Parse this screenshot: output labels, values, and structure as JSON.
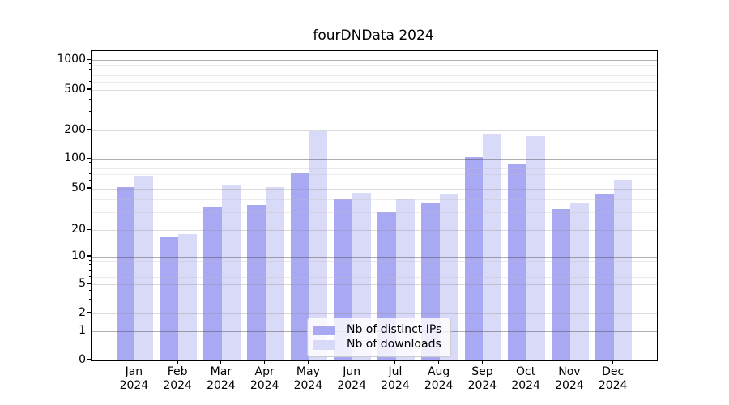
{
  "title": "fourDNData 2024",
  "y_axis": {
    "tick_labels": [
      "0",
      "1",
      "2",
      "5",
      "10",
      "20",
      "50",
      "100",
      "200",
      "500",
      "1000"
    ]
  },
  "x_axis": {
    "months": [
      "Jan",
      "Feb",
      "Mar",
      "Apr",
      "May",
      "Jun",
      "Jul",
      "Aug",
      "Sep",
      "Oct",
      "Nov",
      "Dec"
    ],
    "year": "2024"
  },
  "legend": {
    "items": [
      {
        "label": "Nb of distinct IPs"
      },
      {
        "label": "Nb of downloads"
      }
    ]
  },
  "colors": {
    "ips_bar": "#a9a9f3",
    "downloads_bar": "#d9d9f8",
    "spine": "#000000",
    "grid_major": "#aeaeae",
    "grid_minor": "#ebebeb"
  },
  "chart_data": {
    "type": "bar",
    "title": "fourDNData 2024",
    "categories": [
      "Jan 2024",
      "Feb 2024",
      "Mar 2024",
      "Apr 2024",
      "May 2024",
      "Jun 2024",
      "Jul 2024",
      "Aug 2024",
      "Sep 2024",
      "Oct 2024",
      "Nov 2024",
      "Dec 2024"
    ],
    "series": [
      {
        "name": "Nb of distinct IPs",
        "color": "#a9a9f3",
        "values": [
          52,
          17,
          33,
          35,
          73,
          40,
          30,
          37,
          105,
          89,
          32,
          45
        ]
      },
      {
        "name": "Nb of downloads",
        "color": "#d9d9f8",
        "values": [
          67,
          18,
          54,
          52,
          195,
          46,
          40,
          44,
          184,
          173,
          37,
          62
        ]
      }
    ],
    "xlabel": "",
    "ylabel": "",
    "yscale": "symlog",
    "yticks": [
      0,
      1,
      2,
      5,
      10,
      20,
      50,
      100,
      200,
      500,
      1000
    ],
    "ylim": [
      0,
      1000
    ],
    "grid": true,
    "legend_position": "lower center"
  }
}
